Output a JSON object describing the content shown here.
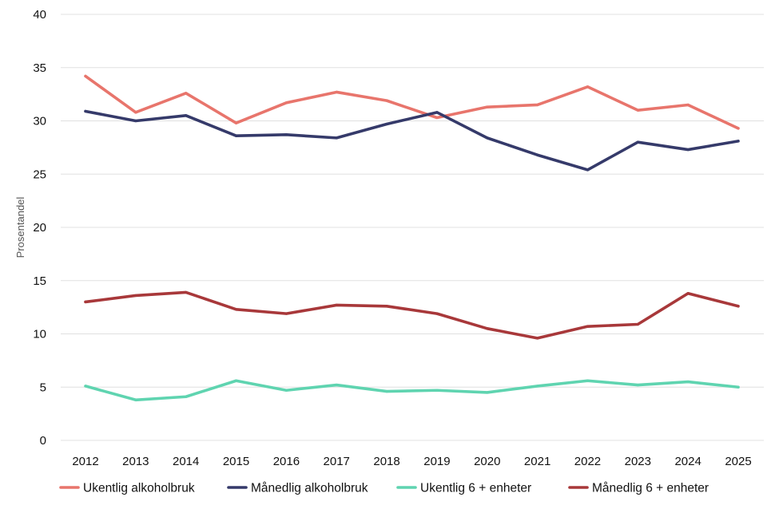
{
  "chart_data": {
    "type": "line",
    "title": "",
    "xlabel": "",
    "ylabel": "Prosentandel",
    "ylim": [
      0,
      40
    ],
    "yticks": [
      0,
      5,
      10,
      15,
      20,
      25,
      30,
      35,
      40
    ],
    "grid": "horizontal",
    "legend_position": "bottom",
    "categories": [
      "2012",
      "2013",
      "2014",
      "2015",
      "2016",
      "2017",
      "2018",
      "2019",
      "2020",
      "2021",
      "2022",
      "2023",
      "2024",
      "2025"
    ],
    "series": [
      {
        "name": "Ukentlig alkoholbruk",
        "color": "#e8756c",
        "values": [
          34.2,
          30.8,
          32.6,
          29.8,
          31.7,
          32.7,
          31.9,
          30.3,
          31.3,
          31.5,
          33.2,
          31.0,
          31.5,
          29.3
        ]
      },
      {
        "name": "Månedlig alkoholbruk",
        "color": "#353a6a",
        "values": [
          30.9,
          30.0,
          30.5,
          28.6,
          28.7,
          28.4,
          29.7,
          30.8,
          28.4,
          26.8,
          25.4,
          28.0,
          27.3,
          28.1
        ]
      },
      {
        "name": "Ukentlig 6 + enheter",
        "color": "#5fd4b0",
        "values": [
          5.1,
          3.8,
          4.1,
          5.6,
          4.7,
          5.2,
          4.6,
          4.7,
          4.5,
          5.1,
          5.6,
          5.2,
          5.5,
          5.0
        ]
      },
      {
        "name": "Månedlig 6 + enheter",
        "color": "#a8383a",
        "values": [
          13.0,
          13.6,
          13.9,
          12.3,
          11.9,
          12.7,
          12.6,
          11.9,
          10.5,
          9.6,
          10.7,
          10.9,
          13.8,
          12.6
        ]
      }
    ]
  }
}
